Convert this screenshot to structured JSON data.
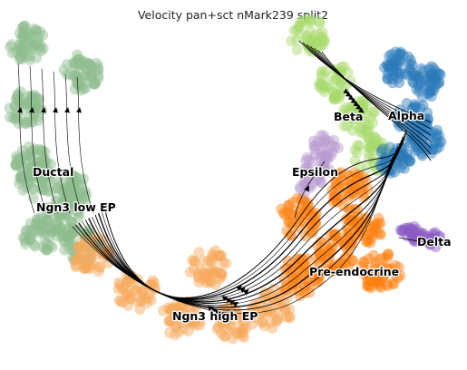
{
  "chart_data": {
    "type": "scatter",
    "title": "Velocity pan+sct nMark239 split2",
    "xlabel": "",
    "ylabel": "",
    "grid": false,
    "legend": "on data",
    "overlay": "velocity streamlines",
    "clusters": [
      {
        "name": "Ductal",
        "color": "#8fbc8f"
      },
      {
        "name": "Ngn3 low EP",
        "color": "#8fbc8f"
      },
      {
        "name": "Ngn3 high EP",
        "color": "#f7a85a"
      },
      {
        "name": "Pre-endocrine",
        "color": "#ff7f0e"
      },
      {
        "name": "Beta",
        "color": "#a6d96a"
      },
      {
        "name": "Alpha",
        "color": "#2b7bba"
      },
      {
        "name": "Epsilon",
        "color": "#b79ad1"
      },
      {
        "name": "Delta",
        "color": "#8a5cc4"
      }
    ]
  }
}
